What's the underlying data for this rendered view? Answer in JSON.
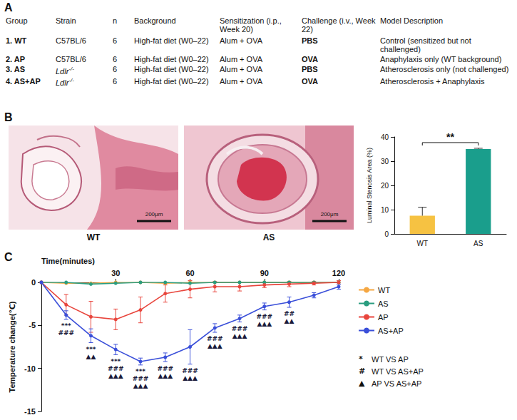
{
  "panels": [
    {
      "letter": "A",
      "table": {
        "header": [
          "Group",
          "Strain",
          "n",
          "Background",
          "Sensitization (i.p., Week 20)",
          "Challenge (i.v., Week 22)",
          "Model Description"
        ],
        "rows": [
          [
            "1. WT",
            "C57BL/6",
            "6",
            "High-fat diet (W0–22)",
            "Alum + OVA",
            "PBS",
            "Control (sensitized but not challenged)"
          ],
          [
            "2. AP",
            "C57BL/6",
            "6",
            "High-fat diet (W0–22)",
            "Alum + OVA",
            "OVA",
            "Anaphylaxis only (WT background)"
          ],
          [
            "3. AS",
            "Ldlr-/-",
            "6",
            "High-fat diet (W0–22)",
            "Alum + OVA",
            "PBS",
            "Atherosclerosis only (not challenged)"
          ],
          [
            "4. AS+AP",
            "Ldlr-/-",
            "6",
            "High-fat diet (W0–22)",
            "Alum + OVA",
            "OVA",
            "Atherosclerosis + Anaphylaxis"
          ]
        ]
      }
    },
    {
      "letter": "B",
      "images": [
        {
          "label": "WT",
          "scale_bar": "200μm"
        },
        {
          "label": "AS",
          "scale_bar": "200μm"
        }
      ]
    },
    {
      "letter": "C"
    }
  ],
  "chart_data": [
    {
      "type": "bar",
      "categories": [
        "WT",
        "AS"
      ],
      "values": [
        7.5,
        35
      ],
      "errors": [
        3.5,
        0.3
      ],
      "colors": [
        "#F6C242",
        "#1A9E8C"
      ],
      "ylabel": "Luminal Stenosis Area (%)",
      "ylim": [
        0,
        40
      ],
      "yticks": [
        0,
        10,
        20,
        30,
        40
      ],
      "grid": false,
      "significance": {
        "between": [
          "WT",
          "AS"
        ],
        "label": "**"
      }
    },
    {
      "type": "line",
      "xlabel": "Time(minutes)",
      "ylabel": "Temperature change(℃)",
      "x": [
        0,
        10,
        20,
        30,
        40,
        50,
        60,
        70,
        80,
        90,
        100,
        110,
        120
      ],
      "xlim": [
        0,
        120
      ],
      "xticks": [
        30,
        60,
        90,
        120
      ],
      "ylim": [
        -15,
        0
      ],
      "yticks": [
        0,
        -5,
        -10,
        -15
      ],
      "grid": false,
      "legend": "right",
      "series": [
        {
          "name": "WT",
          "color": "#F5A742",
          "marker": "circle",
          "values": [
            0,
            -0.1,
            -0.1,
            0,
            0,
            -0.1,
            0,
            0,
            0,
            0,
            0,
            0,
            0
          ]
        },
        {
          "name": "AS",
          "color": "#2A9D7F",
          "marker": "circle",
          "values": [
            0,
            0,
            -0.2,
            -0.1,
            0,
            0,
            -0.1,
            0,
            0,
            0,
            0,
            0,
            0
          ]
        },
        {
          "name": "AP",
          "color": "#E8453C",
          "marker": "circle",
          "values": [
            0,
            -2.6,
            -4.0,
            -4.3,
            -3.2,
            -1.3,
            -0.8,
            -0.5,
            -0.5,
            -0.3,
            -0.2,
            -0.1,
            0
          ],
          "errors": [
            0,
            1.2,
            1.8,
            1.2,
            1.5,
            1.0,
            1.0,
            0.6,
            0.5,
            0.3,
            0.3,
            0.2,
            0.2
          ]
        },
        {
          "name": "AS+AP",
          "color": "#3A4FD9",
          "marker": "circle",
          "values": [
            0,
            -3.8,
            -6.2,
            -7.8,
            -9.2,
            -8.7,
            -7.5,
            -5.3,
            -4.2,
            -2.8,
            -2.3,
            -1.5,
            -0.5
          ],
          "errors": [
            0,
            0.5,
            0.8,
            0.6,
            0.4,
            0.5,
            2.0,
            0.5,
            0.4,
            0.4,
            0.6,
            0.3,
            0.3
          ]
        }
      ],
      "annotations": [
        {
          "x": 10,
          "lines": [
            "***",
            "###"
          ]
        },
        {
          "x": 20,
          "lines": [
            "***",
            "▲▲"
          ]
        },
        {
          "x": 30,
          "lines": [
            "***",
            "###",
            "▲▲▲"
          ]
        },
        {
          "x": 40,
          "lines": [
            "***",
            "###",
            "▲▲▲"
          ]
        },
        {
          "x": 50,
          "lines": [
            "###",
            "▲▲▲"
          ]
        },
        {
          "x": 60,
          "lines": [
            "###",
            "▲▲▲"
          ]
        },
        {
          "x": 70,
          "lines": [
            "###",
            "▲▲▲"
          ]
        },
        {
          "x": 80,
          "lines": [
            "###",
            "▲▲▲"
          ]
        },
        {
          "x": 90,
          "lines": [
            "###",
            "▲▲▲"
          ]
        },
        {
          "x": 100,
          "lines": [
            "##",
            "▲▲"
          ]
        }
      ],
      "comparisons": [
        {
          "symbol": "*",
          "label": "WT VS AP"
        },
        {
          "symbol": "#",
          "label": "WT VS AS+AP"
        },
        {
          "symbol": "▲",
          "label": "AP VS AS+AP"
        }
      ]
    }
  ]
}
